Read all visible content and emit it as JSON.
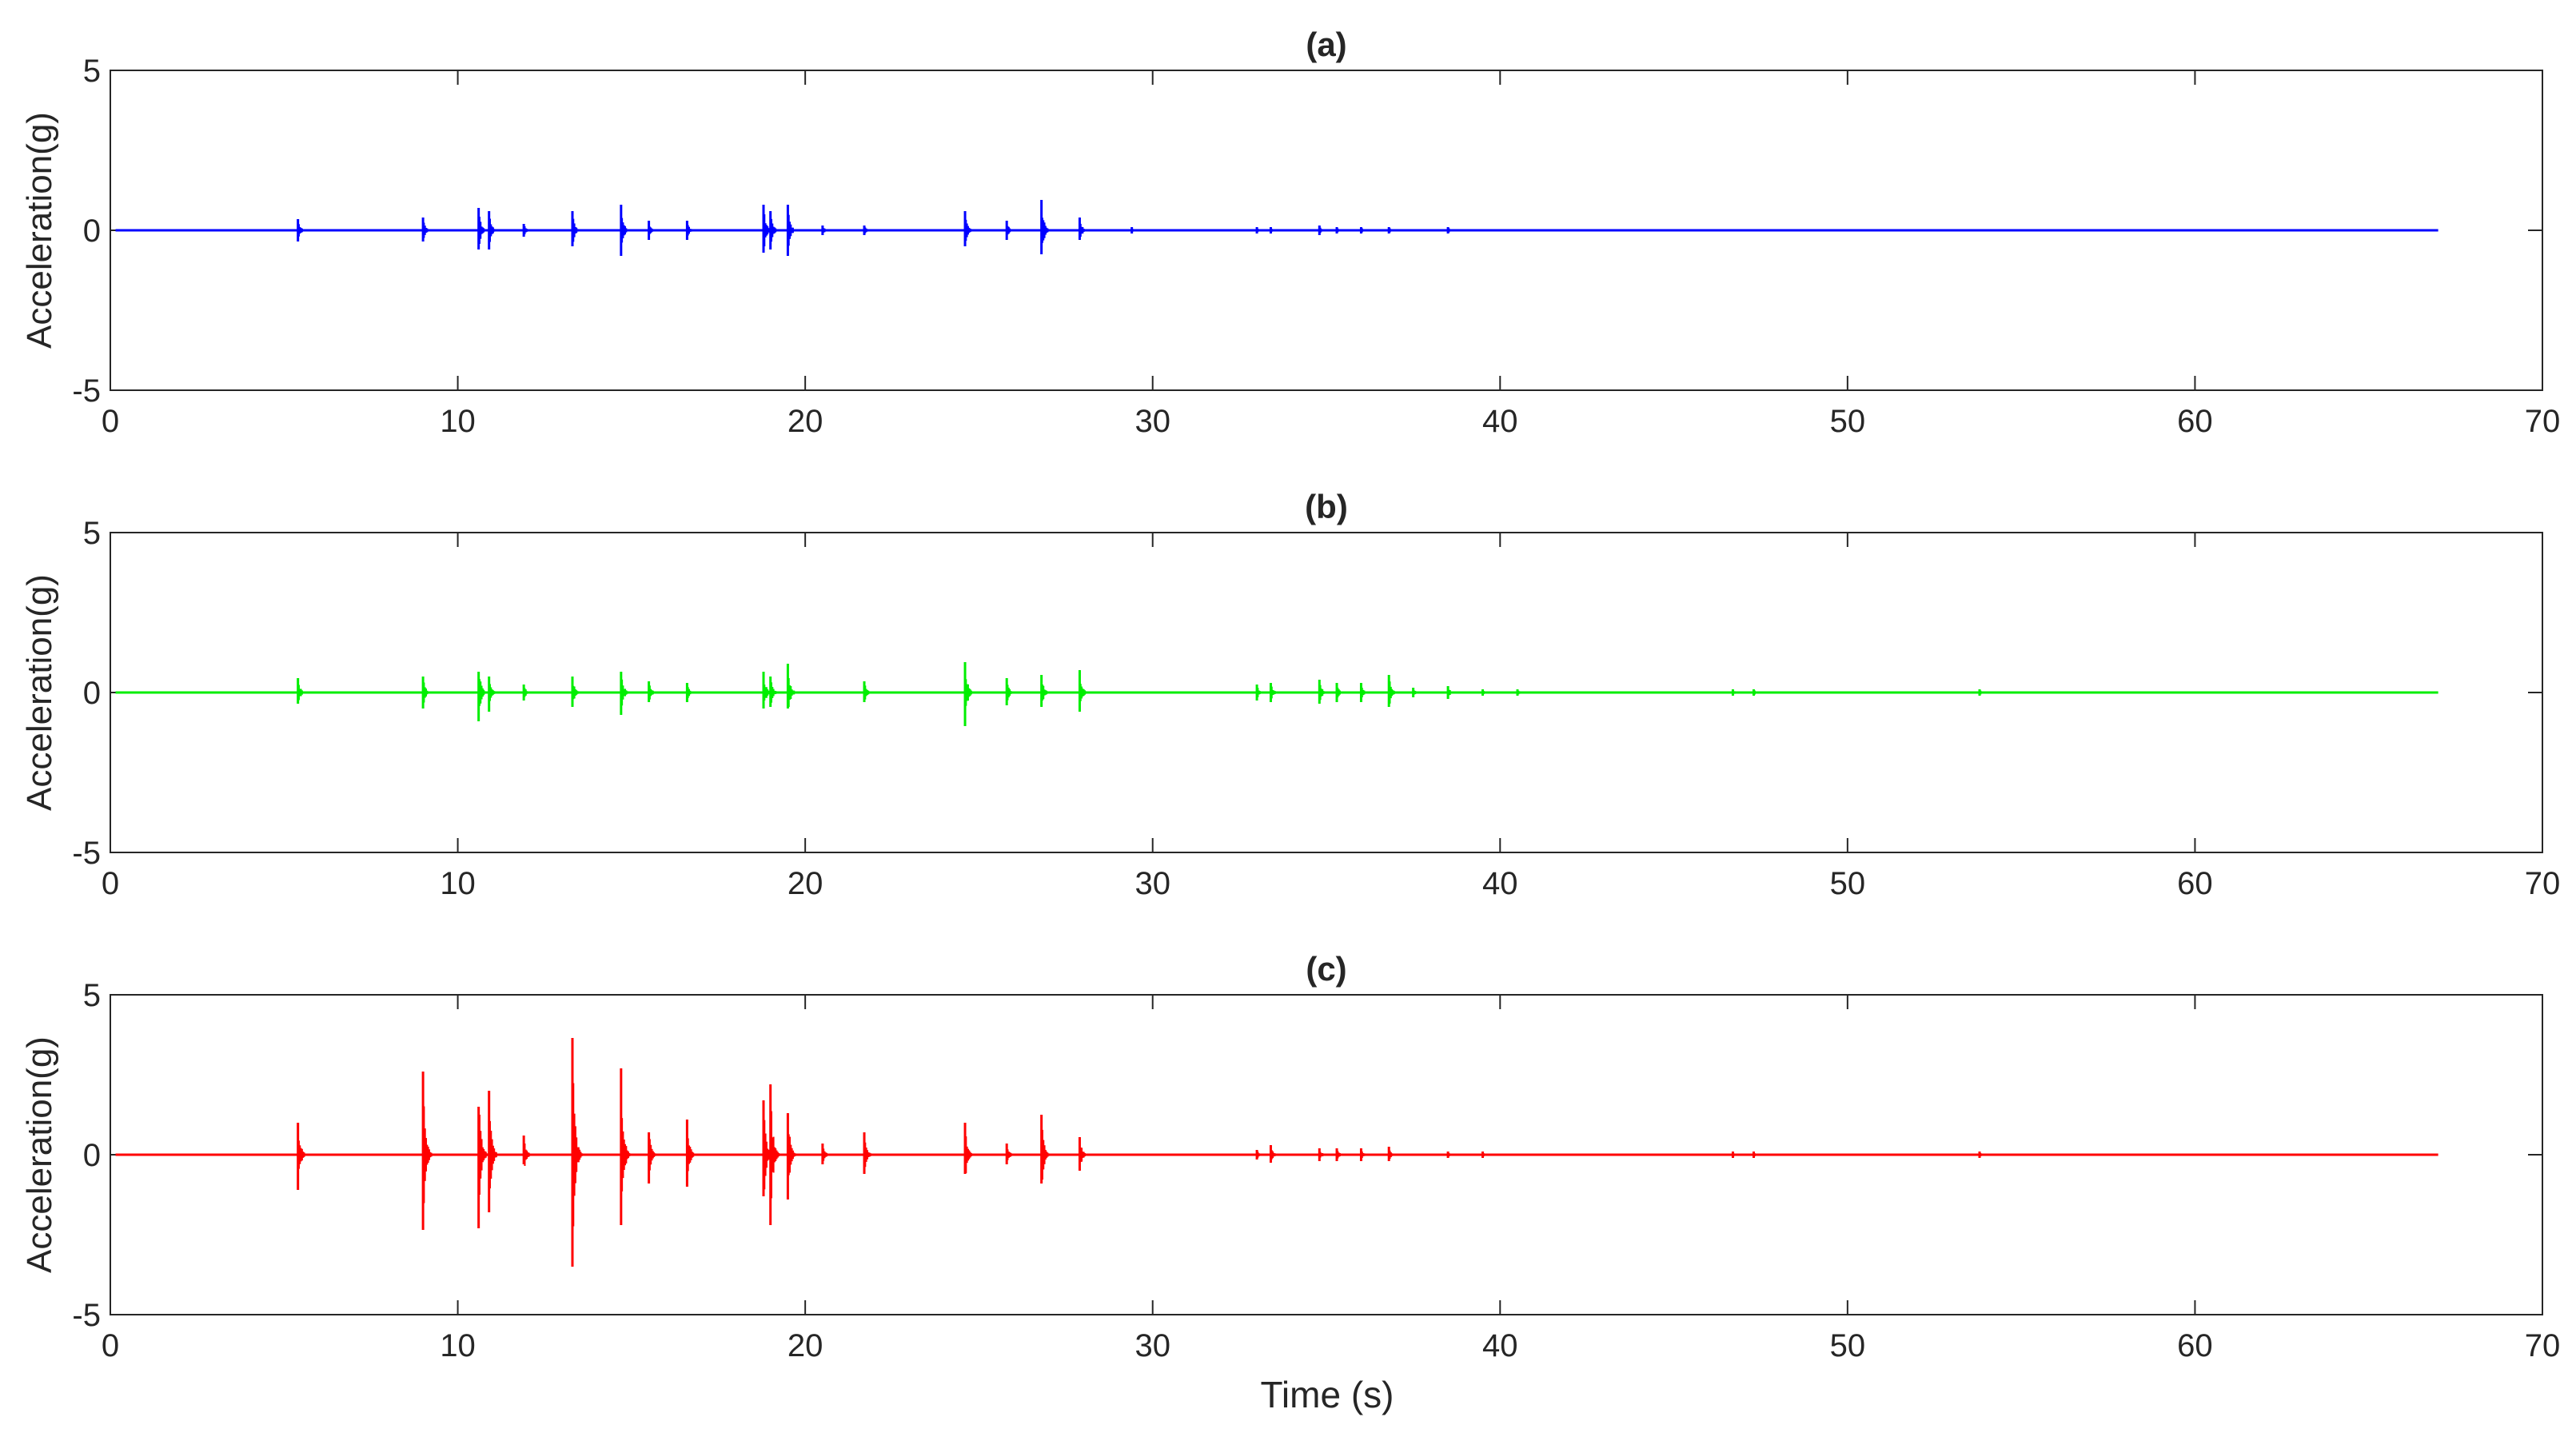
{
  "figure": {
    "xlabel": "Time (s)"
  },
  "chart_data": [
    {
      "type": "line",
      "title": "(a)",
      "xlabel": "",
      "ylabel": "Acceleration(g)",
      "xlim": [
        0,
        70
      ],
      "ylim": [
        -5,
        5
      ],
      "x_ticks": [
        "0",
        "10",
        "20",
        "30",
        "40",
        "50",
        "60",
        "70"
      ],
      "y_ticks": [
        "-5",
        "0",
        "5"
      ],
      "grid": false,
      "color": "#0000ff",
      "series": [
        {
          "signal_end": 67,
          "spikes": [
            {
              "t": 5.4,
              "up": 0.35,
              "down": 0.35
            },
            {
              "t": 9.0,
              "up": 0.4,
              "down": 0.35
            },
            {
              "t": 10.6,
              "up": 0.7,
              "down": 0.6
            },
            {
              "t": 10.9,
              "up": 0.6,
              "down": 0.6
            },
            {
              "t": 11.9,
              "up": 0.2,
              "down": 0.2
            },
            {
              "t": 13.3,
              "up": 0.6,
              "down": 0.5
            },
            {
              "t": 14.7,
              "up": 0.8,
              "down": 0.8
            },
            {
              "t": 15.5,
              "up": 0.3,
              "down": 0.3
            },
            {
              "t": 16.6,
              "up": 0.3,
              "down": 0.3
            },
            {
              "t": 18.8,
              "up": 0.8,
              "down": 0.7
            },
            {
              "t": 19.0,
              "up": 0.6,
              "down": 0.6
            },
            {
              "t": 19.5,
              "up": 0.8,
              "down": 0.8
            },
            {
              "t": 20.5,
              "up": 0.15,
              "down": 0.15
            },
            {
              "t": 21.7,
              "up": 0.15,
              "down": 0.15
            },
            {
              "t": 24.6,
              "up": 0.6,
              "down": 0.5
            },
            {
              "t": 25.8,
              "up": 0.3,
              "down": 0.3
            },
            {
              "t": 26.8,
              "up": 0.95,
              "down": 0.75
            },
            {
              "t": 27.9,
              "up": 0.4,
              "down": 0.3
            },
            {
              "t": 29.4,
              "up": 0.1,
              "down": 0.1
            },
            {
              "t": 33.0,
              "up": 0.1,
              "down": 0.1
            },
            {
              "t": 33.4,
              "up": 0.1,
              "down": 0.1
            },
            {
              "t": 34.8,
              "up": 0.15,
              "down": 0.15
            },
            {
              "t": 35.3,
              "up": 0.1,
              "down": 0.1
            },
            {
              "t": 36.0,
              "up": 0.1,
              "down": 0.1
            },
            {
              "t": 36.8,
              "up": 0.1,
              "down": 0.1
            },
            {
              "t": 38.5,
              "up": 0.1,
              "down": 0.1
            }
          ]
        }
      ]
    },
    {
      "type": "line",
      "title": "(b)",
      "xlabel": "",
      "ylabel": "Acceleration(g)",
      "xlim": [
        0,
        70
      ],
      "ylim": [
        -5,
        5
      ],
      "x_ticks": [
        "0",
        "10",
        "20",
        "30",
        "40",
        "50",
        "60",
        "70"
      ],
      "y_ticks": [
        "-5",
        "0",
        "5"
      ],
      "grid": false,
      "color": "#00ee00",
      "series": [
        {
          "signal_end": 67,
          "spikes": [
            {
              "t": 5.4,
              "up": 0.45,
              "down": 0.35
            },
            {
              "t": 9.0,
              "up": 0.5,
              "down": 0.5
            },
            {
              "t": 10.6,
              "up": 0.65,
              "down": 0.9
            },
            {
              "t": 10.9,
              "up": 0.5,
              "down": 0.6
            },
            {
              "t": 11.9,
              "up": 0.25,
              "down": 0.25
            },
            {
              "t": 13.3,
              "up": 0.5,
              "down": 0.45
            },
            {
              "t": 14.7,
              "up": 0.65,
              "down": 0.7
            },
            {
              "t": 15.5,
              "up": 0.35,
              "down": 0.3
            },
            {
              "t": 16.6,
              "up": 0.3,
              "down": 0.3
            },
            {
              "t": 18.8,
              "up": 0.65,
              "down": 0.5
            },
            {
              "t": 19.0,
              "up": 0.5,
              "down": 0.45
            },
            {
              "t": 19.5,
              "up": 0.9,
              "down": 0.5
            },
            {
              "t": 21.7,
              "up": 0.35,
              "down": 0.3
            },
            {
              "t": 24.6,
              "up": 0.95,
              "down": 1.05
            },
            {
              "t": 25.8,
              "up": 0.45,
              "down": 0.4
            },
            {
              "t": 26.8,
              "up": 0.55,
              "down": 0.45
            },
            {
              "t": 27.9,
              "up": 0.7,
              "down": 0.6
            },
            {
              "t": 33.0,
              "up": 0.25,
              "down": 0.25
            },
            {
              "t": 33.4,
              "up": 0.3,
              "down": 0.3
            },
            {
              "t": 34.8,
              "up": 0.4,
              "down": 0.35
            },
            {
              "t": 35.3,
              "up": 0.3,
              "down": 0.3
            },
            {
              "t": 36.0,
              "up": 0.3,
              "down": 0.3
            },
            {
              "t": 36.8,
              "up": 0.55,
              "down": 0.45
            },
            {
              "t": 37.5,
              "up": 0.15,
              "down": 0.15
            },
            {
              "t": 38.5,
              "up": 0.2,
              "down": 0.2
            },
            {
              "t": 39.5,
              "up": 0.1,
              "down": 0.1
            },
            {
              "t": 40.5,
              "up": 0.1,
              "down": 0.1
            },
            {
              "t": 46.7,
              "up": 0.1,
              "down": 0.1
            },
            {
              "t": 47.3,
              "up": 0.1,
              "down": 0.1
            },
            {
              "t": 53.8,
              "up": 0.1,
              "down": 0.1
            }
          ]
        }
      ]
    },
    {
      "type": "line",
      "title": "(c)",
      "xlabel": "Time (s)",
      "ylabel": "Acceleration(g)",
      "xlim": [
        0,
        70
      ],
      "ylim": [
        -5,
        5
      ],
      "x_ticks": [
        "0",
        "10",
        "20",
        "30",
        "40",
        "50",
        "60",
        "70"
      ],
      "y_ticks": [
        "-5",
        "0",
        "5"
      ],
      "grid": false,
      "color": "#ff0000",
      "series": [
        {
          "signal_end": 67,
          "spikes": [
            {
              "t": 5.4,
              "up": 1.0,
              "down": 1.1
            },
            {
              "t": 9.0,
              "up": 2.6,
              "down": 2.35
            },
            {
              "t": 10.6,
              "up": 1.5,
              "down": 2.3
            },
            {
              "t": 10.9,
              "up": 2.0,
              "down": 1.8
            },
            {
              "t": 11.9,
              "up": 0.6,
              "down": 0.3
            },
            {
              "t": 13.3,
              "up": 3.65,
              "down": 3.5
            },
            {
              "t": 14.7,
              "up": 2.7,
              "down": 2.2
            },
            {
              "t": 15.5,
              "up": 0.7,
              "down": 0.9
            },
            {
              "t": 16.6,
              "up": 1.1,
              "down": 1.0
            },
            {
              "t": 18.8,
              "up": 1.7,
              "down": 1.3
            },
            {
              "t": 19.0,
              "up": 2.2,
              "down": 2.2
            },
            {
              "t": 19.5,
              "up": 1.3,
              "down": 1.4
            },
            {
              "t": 20.5,
              "up": 0.35,
              "down": 0.3
            },
            {
              "t": 21.7,
              "up": 0.7,
              "down": 0.6
            },
            {
              "t": 24.6,
              "up": 1.0,
              "down": 0.6
            },
            {
              "t": 25.8,
              "up": 0.35,
              "down": 0.3
            },
            {
              "t": 26.8,
              "up": 1.25,
              "down": 0.9
            },
            {
              "t": 27.9,
              "up": 0.55,
              "down": 0.5
            },
            {
              "t": 33.0,
              "up": 0.15,
              "down": 0.15
            },
            {
              "t": 33.4,
              "up": 0.3,
              "down": 0.25
            },
            {
              "t": 34.8,
              "up": 0.2,
              "down": 0.2
            },
            {
              "t": 35.3,
              "up": 0.2,
              "down": 0.2
            },
            {
              "t": 36.0,
              "up": 0.2,
              "down": 0.2
            },
            {
              "t": 36.8,
              "up": 0.25,
              "down": 0.2
            },
            {
              "t": 38.5,
              "up": 0.1,
              "down": 0.1
            },
            {
              "t": 39.5,
              "up": 0.1,
              "down": 0.1
            },
            {
              "t": 46.7,
              "up": 0.1,
              "down": 0.1
            },
            {
              "t": 47.3,
              "up": 0.1,
              "down": 0.1
            },
            {
              "t": 53.8,
              "up": 0.1,
              "down": 0.1
            }
          ]
        }
      ]
    }
  ]
}
